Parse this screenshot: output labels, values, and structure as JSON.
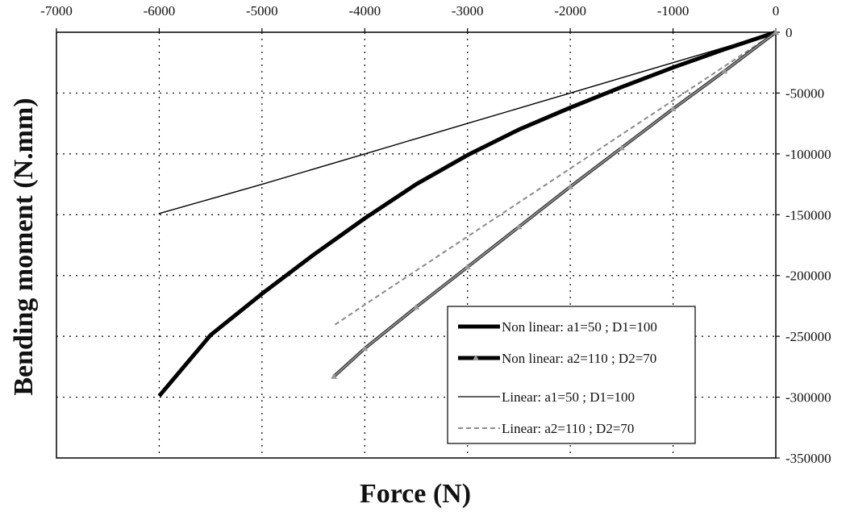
{
  "chart_data": {
    "type": "line",
    "title": "",
    "xlabel": "Force (N)",
    "ylabel": "Bending moment (N.mm)",
    "xlim": [
      -7000,
      0
    ],
    "ylim": [
      -350000,
      0
    ],
    "x_ticks": [
      -7000,
      -6000,
      -5000,
      -4000,
      -3000,
      -2000,
      -1000,
      0
    ],
    "y_ticks": [
      0,
      -50000,
      -100000,
      -150000,
      -200000,
      -250000,
      -300000,
      -350000
    ],
    "x_axis_position": "top",
    "y_axis_position": "right",
    "grid": true,
    "legend_position": "bottom-right",
    "series": [
      {
        "name": "Non linear: a1=50 ; D1=100",
        "color": "#000000",
        "style": "thick-solid",
        "x": [
          0,
          -500,
          -1000,
          -1500,
          -2000,
          -2500,
          -3000,
          -3500,
          -4000,
          -4500,
          -5000,
          -5500,
          -6000
        ],
        "y": [
          0,
          -14000,
          -29000,
          -45000,
          -62000,
          -80000,
          -101000,
          -125000,
          -153000,
          -183000,
          -215000,
          -249000,
          -299000
        ]
      },
      {
        "name": "Non linear: a2=110 ; D2=70",
        "color": "#8a8a8a",
        "style": "thick-markers",
        "x": [
          0,
          -500,
          -1000,
          -1500,
          -2000,
          -2500,
          -3000,
          -3500,
          -4000,
          -4300
        ],
        "y": [
          0,
          -32000,
          -63000,
          -95000,
          -127000,
          -160000,
          -193000,
          -226000,
          -260000,
          -283000
        ]
      },
      {
        "name": "Linear: a1=50 ; D1=100",
        "color": "#000000",
        "style": "thin-solid",
        "x": [
          0,
          -1000,
          -2000,
          -3000,
          -4000,
          -5000,
          -6000
        ],
        "y": [
          0,
          -25000,
          -50000,
          -75000,
          -100000,
          -125000,
          -149000
        ]
      },
      {
        "name": "Linear: a2=110 ; D2=70",
        "color": "#8a8a8a",
        "style": "dashed",
        "x": [
          0,
          -1000,
          -2000,
          -3000,
          -4000,
          -4300
        ],
        "y": [
          0,
          -56000,
          -112000,
          -168000,
          -224000,
          -241000
        ]
      }
    ]
  }
}
